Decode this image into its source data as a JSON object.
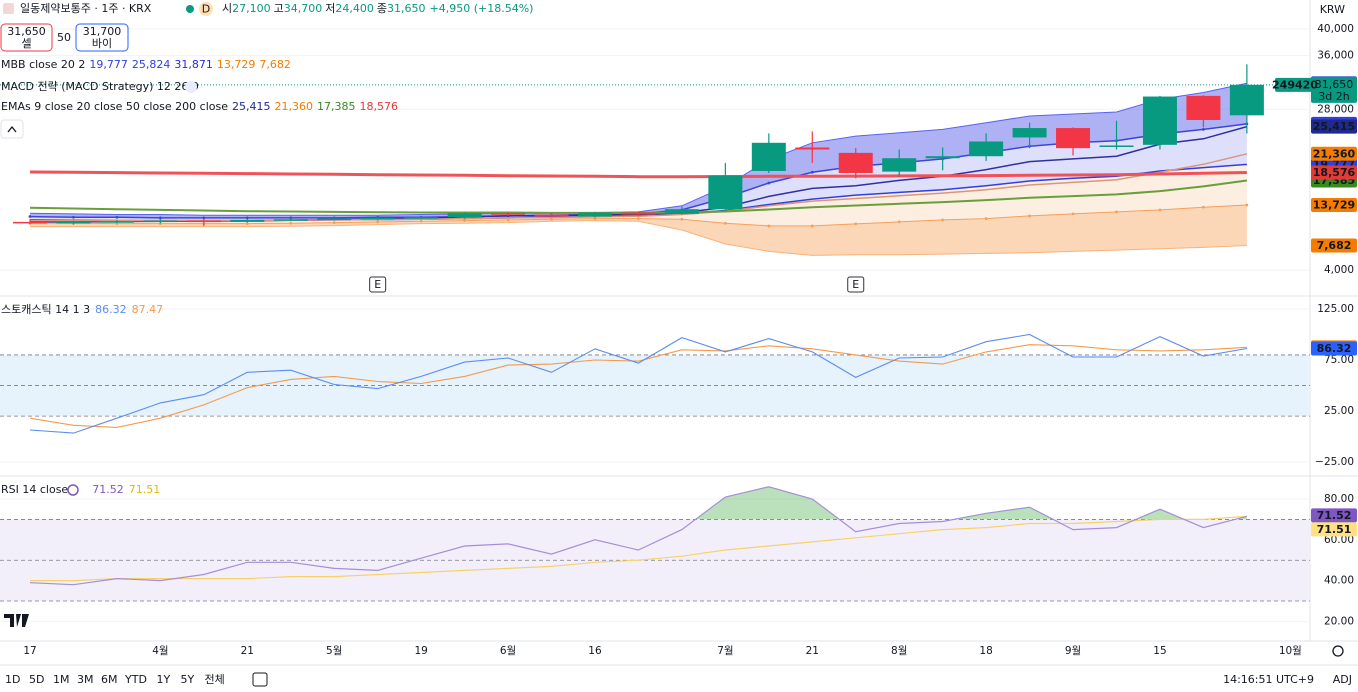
{
  "header": {
    "symbol": "일동제약보통주 · 1주 · KRX",
    "interval_badge": "D",
    "ohlc": [
      {
        "label": "시",
        "value": "27,100"
      },
      {
        "label": "고",
        "value": "34,700"
      },
      {
        "label": "저",
        "value": "24,400"
      },
      {
        "label": "종",
        "value": "31,650"
      }
    ],
    "change": "+4,950 (+18.54%)",
    "currency": "KRW"
  },
  "trade": {
    "sell_price": "31,650",
    "sell_label": "셀",
    "spread": "50",
    "buy_price": "31,700",
    "buy_label": "바이"
  },
  "legends": {
    "mbb": "MBB close 20 2",
    "macd": "MACD 전략 (MACD Strategy) 12 26 9",
    "ema": "EMAs 9 close 20 close 50 close 200 close"
  },
  "categories": [
    "17",
    null,
    null,
    "4월",
    null,
    "21",
    null,
    "5월",
    null,
    "19",
    null,
    "6월",
    null,
    "16",
    null,
    null,
    "7월",
    null,
    "21",
    null,
    "8월",
    null,
    "18",
    null,
    "9월",
    null,
    "15",
    null,
    null,
    "10월"
  ],
  "events": [
    {
      "index": 8,
      "label": "E"
    },
    {
      "index": 19,
      "label": "E"
    }
  ],
  "price": {
    "ylim": [
      300,
      44300
    ],
    "yticks": [
      {
        "value": 40000,
        "label": "40,000"
      },
      {
        "value": 36000,
        "label": "36,000"
      },
      {
        "value": 28000,
        "label": "28,000"
      },
      {
        "value": 4000,
        "label": "4,000"
      }
    ],
    "candles": {
      "open": [
        11200,
        11000,
        11200,
        11300,
        11400,
        11200,
        11500,
        11600,
        11700,
        11800,
        11900,
        12500,
        12300,
        12000,
        12600,
        12400,
        13100,
        18800,
        22300,
        21500,
        18700,
        20700,
        21000,
        23800,
        25200,
        22400,
        22700,
        30000,
        27100,
        null
      ],
      "high": [
        11600,
        11400,
        11500,
        11600,
        11700,
        11600,
        11800,
        11900,
        12000,
        12100,
        12600,
        12700,
        12500,
        12700,
        12800,
        13500,
        20000,
        24400,
        24700,
        22200,
        22000,
        22300,
        24400,
        26000,
        25300,
        26300,
        30000,
        30100,
        34700,
        null
      ],
      "low": [
        10900,
        10800,
        11000,
        11000,
        10600,
        11100,
        11300,
        11400,
        11500,
        11600,
        11700,
        12100,
        11900,
        11900,
        12100,
        12300,
        12900,
        18500,
        20000,
        17700,
        17900,
        18900,
        20300,
        22200,
        21100,
        22000,
        22000,
        25300,
        24400,
        null
      ],
      "close": [
        11000,
        11200,
        11300,
        11400,
        11200,
        11500,
        11600,
        11700,
        11800,
        11900,
        12500,
        12300,
        12000,
        12600,
        12300,
        13100,
        18100,
        23000,
        22000,
        18500,
        20700,
        21000,
        23200,
        25200,
        22200,
        22600,
        29900,
        26400,
        31650,
        null
      ]
    },
    "close_label": "31,650",
    "countdown": "3d 2h",
    "volume_label": "249420",
    "series": [
      {
        "group": "mbb",
        "color": "#2f3fe0",
        "width": 1.5,
        "last_label": "19,777",
        "values": [
          11500,
          11450,
          11400,
          11400,
          11400,
          11400,
          11450,
          11500,
          11550,
          11600,
          11700,
          11800,
          11900,
          12000,
          12100,
          12400,
          12900,
          13800,
          14600,
          15200,
          15600,
          16000,
          16600,
          17300,
          17700,
          18000,
          18800,
          19300,
          19777,
          null
        ]
      },
      {
        "group": "mbb",
        "color": "#3d45d8",
        "width": 1.5,
        "last_label": "25,824",
        "values": [
          12000,
          11900,
          11900,
          11800,
          11800,
          11800,
          11800,
          11800,
          11900,
          11900,
          12000,
          12100,
          12200,
          12300,
          12400,
          13000,
          14800,
          17000,
          18600,
          19500,
          20000,
          20600,
          21500,
          22500,
          23000,
          23300,
          24300,
          25000,
          25824,
          null
        ]
      },
      {
        "group": "mbb",
        "color": "#5a62f0",
        "width": 1,
        "last_label": "31,871",
        "values": [
          12500,
          12400,
          12300,
          12300,
          12200,
          12200,
          12200,
          12200,
          12200,
          12300,
          12400,
          12500,
          12500,
          12600,
          12700,
          13600,
          16500,
          20500,
          23000,
          24000,
          24500,
          25000,
          26000,
          27000,
          27300,
          27600,
          29500,
          30500,
          31871,
          null
        ]
      },
      {
        "group": "mbb",
        "color": "#f5a05a",
        "width": 1,
        "last_label": "13,729",
        "values": [
          11000,
          11000,
          10950,
          10950,
          10950,
          10950,
          11000,
          11100,
          11200,
          11300,
          11400,
          11500,
          11600,
          11700,
          11700,
          11600,
          11000,
          10600,
          10600,
          10900,
          11200,
          11500,
          11700,
          12100,
          12400,
          12700,
          13000,
          13400,
          13729,
          null
        ]
      },
      {
        "group": "mbb",
        "color": "#f8b27a",
        "width": 1,
        "last_label": "7,682",
        "values": [
          10500,
          10500,
          10500,
          10500,
          10500,
          10500,
          10550,
          10650,
          10800,
          10950,
          11000,
          11100,
          11300,
          11400,
          11300,
          10000,
          7900,
          6800,
          6200,
          6300,
          6300,
          6400,
          6500,
          6600,
          6800,
          7000,
          7200,
          7400,
          7682,
          null
        ]
      },
      {
        "group": "ema",
        "color": "#3030a0",
        "width": 1.5,
        "last_label": "25,415",
        "values": [
          11200,
          11200,
          11250,
          11300,
          11300,
          11350,
          11450,
          11550,
          11650,
          11750,
          11950,
          12100,
          12100,
          12250,
          12300,
          12550,
          13400,
          15000,
          16200,
          16600,
          17400,
          18000,
          19000,
          20200,
          20600,
          21000,
          22800,
          23600,
          25415,
          null
        ]
      },
      {
        "group": "ema",
        "color": "#d9967a",
        "width": 1.5,
        "last_label": "21,360",
        "values": [
          11400,
          11400,
          11400,
          11400,
          11400,
          11400,
          11450,
          11500,
          11550,
          11600,
          11700,
          11800,
          11850,
          11950,
          12050,
          12300,
          12800,
          13600,
          14300,
          14700,
          15100,
          15500,
          16000,
          16700,
          17100,
          17500,
          18600,
          19800,
          21360,
          null
        ]
      },
      {
        "group": "ema",
        "color": "#6a9e3a",
        "width": 2,
        "last_label": "17,385",
        "values": [
          13300,
          13200,
          13100,
          13000,
          12900,
          12800,
          12750,
          12700,
          12650,
          12600,
          12600,
          12600,
          12550,
          12550,
          12550,
          12600,
          12750,
          13050,
          13400,
          13650,
          13900,
          14150,
          14450,
          14800,
          15050,
          15300,
          15800,
          16500,
          17385,
          null
        ]
      },
      {
        "group": "ema",
        "color": "#f0525a",
        "width": 3,
        "last_label": "18,576",
        "values": [
          18650,
          18600,
          18550,
          18500,
          18450,
          18400,
          18350,
          18300,
          18250,
          18200,
          18150,
          18100,
          18050,
          18000,
          17950,
          17950,
          17980,
          18000,
          18020,
          18040,
          18060,
          18080,
          18110,
          18150,
          18200,
          18250,
          18350,
          18450,
          18576,
          null
        ]
      }
    ],
    "label_colors": [
      "#2f3fe0",
      "#2f3fe0",
      "#2929e6",
      "#f57c00",
      "#f57c00",
      "#1f2a8c",
      "#f57c00",
      "#3a8a20",
      "#e53935"
    ]
  },
  "stoch": {
    "title": "스토캐스틱 14 1 3",
    "ylim": [
      -37.7,
      136.8
    ],
    "yticks": [
      {
        "value": 125,
        "label": "125.00"
      },
      {
        "value": 75,
        "label": "75.00"
      },
      {
        "value": 25,
        "label": "25.00"
      },
      {
        "value": -25,
        "label": "−25.00"
      }
    ],
    "levels": [
      80,
      50,
      20
    ],
    "k": {
      "color": "#5b8def",
      "values": [
        6.4,
        3.4,
        18,
        33,
        41,
        63,
        65,
        51,
        47,
        59,
        73,
        77,
        63,
        86,
        72,
        97,
        83,
        96,
        83,
        58,
        77,
        78,
        93,
        100,
        78,
        78,
        98,
        79,
        86.32,
        null
      ]
    },
    "d": {
      "color": "#f59a4a",
      "values": [
        18,
        11,
        9,
        18,
        31,
        48,
        56,
        59,
        54,
        52,
        59,
        70,
        71,
        75,
        74,
        85,
        84,
        89,
        86,
        80,
        74,
        71,
        83,
        90,
        89,
        85,
        84,
        85,
        87.47,
        null
      ]
    }
  },
  "rsi": {
    "title": "RSI 14 close",
    "ylim": [
      10.9,
      90.8
    ],
    "yticks": [
      {
        "value": 80,
        "label": "80.00"
      },
      {
        "value": 60,
        "label": "60.00"
      },
      {
        "value": 40,
        "label": "40.00"
      },
      {
        "value": 20,
        "label": "20.00"
      }
    ],
    "levels": [
      70,
      50,
      30
    ],
    "rsi": {
      "color": "#a58fd6",
      "values": [
        39,
        38,
        41,
        40,
        43,
        49,
        49,
        46,
        45,
        51,
        57,
        58,
        53,
        60,
        55,
        65,
        81,
        86,
        80,
        64,
        68,
        69,
        73,
        76,
        65,
        66,
        75,
        66,
        71.52,
        null
      ]
    },
    "ma": {
      "color": "#f5d36a",
      "values": [
        40,
        40,
        41,
        41,
        41,
        41,
        42,
        42,
        43,
        44,
        45,
        46,
        47,
        49,
        50,
        52,
        55,
        57,
        59,
        61,
        63,
        65,
        66,
        68,
        68,
        69,
        70,
        70,
        71.51,
        null
      ]
    }
  },
  "toolbar": {
    "ranges": [
      "1D",
      "5D",
      "1M",
      "3M",
      "6M",
      "YTD",
      "1Y",
      "5Y",
      "전체"
    ],
    "time": "14:16:51 UTC+9",
    "adj": "ADJ"
  }
}
